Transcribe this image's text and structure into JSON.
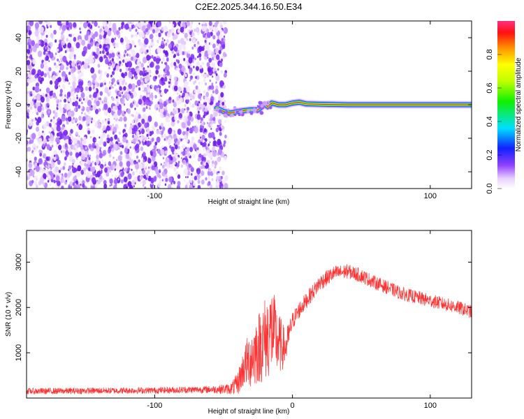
{
  "title": "C2E2.2025.344.16.50.E34",
  "chart_data": [
    {
      "type": "heatmap",
      "xlabel": "Height of straight line (km)",
      "ylabel": "Frequency (Hz)",
      "xlim": [
        -193,
        130
      ],
      "ylim": [
        -50,
        50
      ],
      "xticks": [
        -100,
        0,
        100
      ],
      "xtick_labels": [
        "-100",
        "",
        "100"
      ],
      "yticks": [
        -40,
        -20,
        0,
        20,
        40
      ],
      "ytick_labels": [
        "-40",
        "-20",
        "0",
        "20",
        "40"
      ],
      "noise_region_x": [
        -193,
        -48
      ],
      "ridge": {
        "points": [
          [
            -55,
            -2
          ],
          [
            -50,
            -4
          ],
          [
            -45,
            -5
          ],
          [
            -40,
            -4
          ],
          [
            -35,
            -3.5
          ],
          [
            -30,
            -3
          ],
          [
            -25,
            -3
          ],
          [
            -22,
            -1
          ],
          [
            -20,
            0
          ],
          [
            -18,
            -1
          ],
          [
            -15,
            1
          ],
          [
            -10,
            0
          ],
          [
            -5,
            0
          ],
          [
            0,
            1
          ],
          [
            5,
            1.5
          ],
          [
            10,
            0.5
          ],
          [
            20,
            0.3
          ],
          [
            40,
            0
          ],
          [
            80,
            0
          ],
          [
            130,
            0
          ]
        ],
        "width_hz": 2,
        "amplitude": 1.0
      },
      "colorbar": {
        "label": "Normalized spectral amplitude",
        "range": [
          0,
          1
        ],
        "ticks": [
          0.0,
          0.2,
          0.4,
          0.6,
          0.8
        ],
        "tick_labels": [
          "0.0",
          "0.2",
          "0.4",
          "0.6",
          "0.8"
        ]
      }
    },
    {
      "type": "line",
      "color": "#ff3030",
      "xlabel": "Height of straight line (km)",
      "ylabel": "SNR (10 * v/v)",
      "xlim": [
        -193,
        130
      ],
      "ylim": [
        0,
        3700
      ],
      "xticks": [
        -100,
        0,
        100
      ],
      "xtick_labels": [
        "-100",
        "0",
        "100"
      ],
      "yticks": [
        1000,
        2000,
        3000
      ],
      "ytick_labels": [
        "1000",
        "2000",
        "3000"
      ],
      "envelope": {
        "x": [
          -193,
          -150,
          -100,
          -60,
          -45,
          -40,
          -35,
          -30,
          -25,
          -20,
          -15,
          -10,
          -5,
          0,
          5,
          10,
          15,
          20,
          30,
          40,
          50,
          60,
          80,
          100,
          120,
          130
        ],
        "mean": [
          150,
          160,
          170,
          190,
          200,
          300,
          700,
          900,
          1100,
          1300,
          1500,
          1200,
          1100,
          1700,
          1950,
          2150,
          2350,
          2550,
          2750,
          2800,
          2700,
          2550,
          2300,
          2150,
          2000,
          1900
        ],
        "noise": [
          70,
          70,
          70,
          80,
          120,
          250,
          450,
          700,
          800,
          950,
          1000,
          700,
          400,
          200,
          200,
          180,
          180,
          180,
          170,
          160,
          160,
          150,
          150,
          150,
          150,
          150
        ]
      }
    }
  ]
}
